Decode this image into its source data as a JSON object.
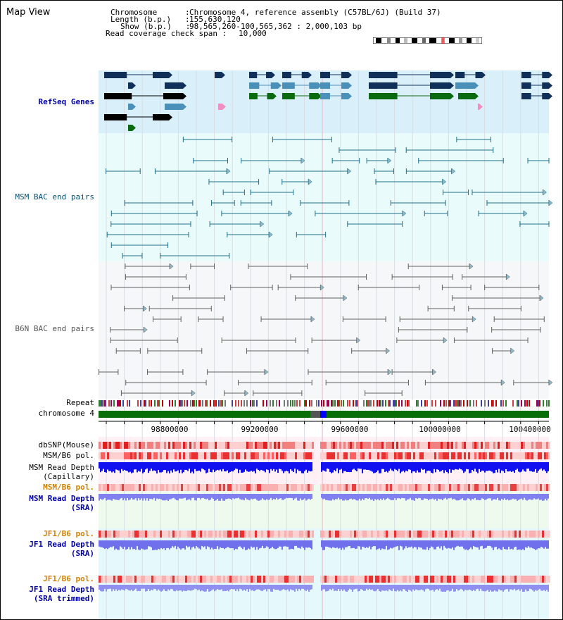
{
  "title": "Map View",
  "header": {
    "chromosome_key": "Chromosome      :",
    "chromosome_val": "Chromosome 4, reference assembly (C57BL/6J) (Build 37)",
    "length_key": "Length (b.p.)   :",
    "length_val": "155,630,120",
    "show_key": "Show (b.p.)   :",
    "show_val": "98,565,260-100,565,362 : 2,000,103 bp",
    "coverage_key": "Read coverage check span :",
    "coverage_val": "10,000"
  },
  "tracks": {
    "refseq": "RefSeq Genes",
    "msm_bac": "MSM BAC end pairs",
    "b6n_bac": "B6N BAC end pairs",
    "repeat": "Repeat",
    "chrom": "chromosome 4",
    "dbsnp": "dbSNP(Mouse)",
    "msm_b6_pol_1": "MSM/B6 pol.",
    "msm_depth_cap_1": "MSM Read Depth",
    "msm_depth_cap_2": "(Capillary)",
    "msm_b6_pol_2": "MSM/B6 pol.",
    "msm_depth_sra_1": "MSM Read Depth",
    "msm_depth_sra_2": "(SRA)",
    "jf1_pol_1": "JF1/B6 pol.",
    "jf1_depth_sra_1": "JF1 Read Depth",
    "jf1_depth_sra_2": "(SRA)",
    "jf1_pol_2": "JF1/B6 pol.",
    "jf1_depth_trim_1": "JF1 Read Depth",
    "jf1_depth_trim_2": "(SRA trimmed)"
  },
  "axis": {
    "ticks": [
      "98800000",
      "99200000",
      "99600000",
      "100000000",
      "100400000"
    ]
  },
  "colors": {
    "refseq_bg": "#d9f0fb",
    "bac_bg": "#e9fbfb",
    "b6n_bg": "#f5f7f8",
    "gene_dark": "#10305a",
    "gene_mid": "#4a90b8",
    "gene_green": "#0a6a10",
    "msm_line": "#1f6f8b",
    "b6n_line": "#606060",
    "label_black": "#000000",
    "label_navy": "#0000a0",
    "label_teal": "#005070",
    "label_orange": "#d08000"
  }
}
